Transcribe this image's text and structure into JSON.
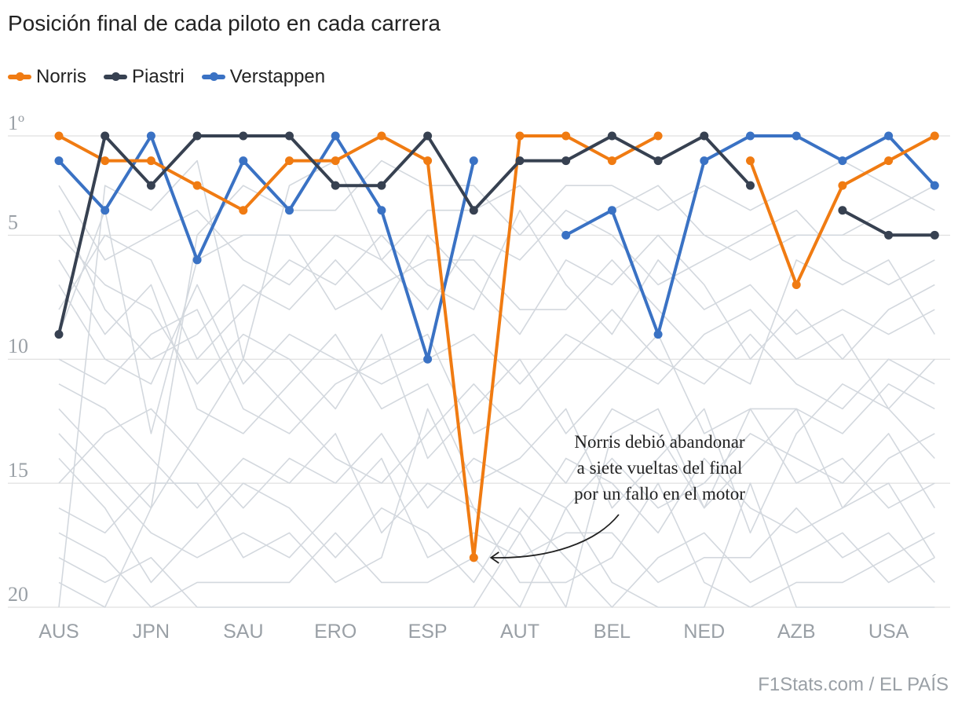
{
  "title": "Posición final de cada piloto en cada carrera",
  "source": "F1Stats.com / EL PAÍS",
  "annotation": {
    "line1": "Norris debió abandonar",
    "line2": "a siete vueltas del final",
    "line3": "por un fallo en el motor"
  },
  "colors": {
    "Norris": "#f07b12",
    "Piastri": "#374151",
    "Verstappen": "#3a72c4",
    "others": "#d3d8de",
    "grid": "#d9d9d9",
    "tick": "#9aa0a6"
  },
  "chart_data": {
    "type": "line",
    "ylabel": "",
    "y_axis": "posición (invertido, 1 arriba)",
    "ylim": [
      1,
      20
    ],
    "y_ticks": [
      {
        "value": 1,
        "label": "1º"
      },
      {
        "value": 5,
        "label": "5"
      },
      {
        "value": 10,
        "label": "10"
      },
      {
        "value": 15,
        "label": "15"
      },
      {
        "value": 20,
        "label": "20"
      }
    ],
    "x_count": 20,
    "x_tick_labels": [
      {
        "index": 0,
        "label": "AUS"
      },
      {
        "index": 2,
        "label": "JPN"
      },
      {
        "index": 4,
        "label": "SAU"
      },
      {
        "index": 6,
        "label": "ERO"
      },
      {
        "index": 8,
        "label": "ESP"
      },
      {
        "index": 10,
        "label": "AUT"
      },
      {
        "index": 12,
        "label": "BEL"
      },
      {
        "index": 14,
        "label": "NED"
      },
      {
        "index": 16,
        "label": "AZB"
      },
      {
        "index": 18,
        "label": "USA"
      }
    ],
    "series": [
      {
        "name": "Norris",
        "values": [
          1,
          2,
          2,
          3,
          4,
          2,
          2,
          1,
          2,
          18,
          1,
          1,
          2,
          1,
          null,
          2,
          7,
          3,
          2,
          1
        ]
      },
      {
        "name": "Piastri",
        "values": [
          9,
          1,
          3,
          1,
          1,
          1,
          3,
          3,
          1,
          4,
          2,
          2,
          1,
          2,
          1,
          3,
          null,
          4,
          5,
          5
        ]
      },
      {
        "name": "Verstappen",
        "values": [
          2,
          4,
          1,
          6,
          2,
          4,
          1,
          4,
          10,
          2,
          null,
          null,
          null,
          null,
          null,
          null,
          null,
          null,
          null,
          null
        ],
        "segments": [
          {
            "start": 0,
            "values": [
              2,
              4,
              1,
              6,
              2,
              4,
              1,
              4,
              10,
              2
            ]
          },
          {
            "start": 11,
            "values": [
              5,
              4,
              9,
              2,
              1,
              1,
              2,
              1,
              3
            ]
          }
        ]
      }
    ],
    "background_series": [
      [
        5,
        7,
        8,
        11,
        9,
        10,
        12,
        9,
        14,
        12,
        10,
        13,
        11,
        9,
        13,
        12,
        15,
        14,
        16,
        15
      ],
      [
        6,
        9,
        7,
        12,
        13,
        11,
        9,
        12,
        11,
        15,
        14,
        12,
        16,
        14,
        12,
        17,
        13,
        11,
        12,
        14
      ],
      [
        3,
        6,
        5,
        4,
        6,
        7,
        5,
        6,
        8,
        5,
        6,
        4,
        5,
        7,
        6,
        5,
        4,
        6,
        7,
        6
      ],
      [
        12,
        14,
        16,
        13,
        10,
        12,
        14,
        15,
        13,
        11,
        13,
        15,
        12,
        13,
        16,
        14,
        12,
        13,
        11,
        12
      ],
      [
        8,
        5,
        6,
        10,
        8,
        6,
        7,
        5,
        7,
        8,
        4,
        7,
        9,
        6,
        8,
        7,
        9,
        8,
        9,
        8
      ],
      [
        14,
        16,
        19,
        17,
        15,
        16,
        18,
        16,
        17,
        19,
        16,
        18,
        20,
        18,
        17,
        19,
        18,
        17,
        19,
        18
      ],
      [
        10,
        11,
        9,
        8,
        12,
        13,
        11,
        10,
        9,
        13,
        12,
        10,
        8,
        10,
        11,
        9,
        11,
        12,
        10,
        11
      ],
      [
        4,
        8,
        10,
        9,
        7,
        8,
        6,
        8,
        5,
        7,
        9,
        6,
        7,
        5,
        7,
        10,
        8,
        10,
        8,
        7
      ],
      [
        15,
        13,
        12,
        14,
        16,
        14,
        15,
        13,
        16,
        14,
        15,
        16,
        14,
        16,
        15,
        13,
        14,
        15,
        13,
        16
      ],
      [
        11,
        12,
        14,
        16,
        14,
        15,
        13,
        17,
        15,
        16,
        17,
        14,
        15,
        17,
        14,
        16,
        17,
        16,
        14,
        13
      ],
      [
        7,
        10,
        11,
        7,
        11,
        9,
        10,
        11,
        10,
        9,
        11,
        9,
        10,
        11,
        9,
        8,
        10,
        9,
        12,
        10
      ],
      [
        13,
        15,
        17,
        18,
        17,
        18,
        16,
        14,
        18,
        17,
        18,
        17,
        17,
        19,
        18,
        18,
        16,
        18,
        17,
        19
      ],
      [
        16,
        17,
        15,
        15,
        18,
        17,
        19,
        18,
        12,
        16,
        19,
        19,
        18,
        15,
        19,
        20,
        19,
        19,
        18,
        17
      ],
      [
        9,
        4,
        13,
        6,
        5,
        5,
        8,
        7,
        6,
        6,
        8,
        8,
        6,
        8,
        10,
        11,
        6,
        7,
        6,
        9
      ],
      [
        17,
        18,
        20,
        19,
        19,
        19,
        17,
        19,
        19,
        18,
        20,
        16,
        19,
        20,
        20,
        15,
        20,
        20,
        20,
        20
      ],
      [
        18,
        19,
        18,
        20,
        20,
        20,
        20,
        20,
        20,
        20,
        17,
        20,
        13,
        12,
        16,
        12,
        12,
        16,
        15,
        18
      ],
      [
        19,
        20,
        16,
        5,
        3,
        4,
        4,
        2,
        3,
        3,
        5,
        3,
        3,
        4,
        3,
        4,
        3,
        2,
        3,
        4
      ],
      [
        20,
        3,
        4,
        2,
        10,
        3,
        2,
        6,
        4,
        4,
        3,
        5,
        4,
        3,
        5,
        6,
        5,
        5,
        4,
        3
      ]
    ]
  }
}
